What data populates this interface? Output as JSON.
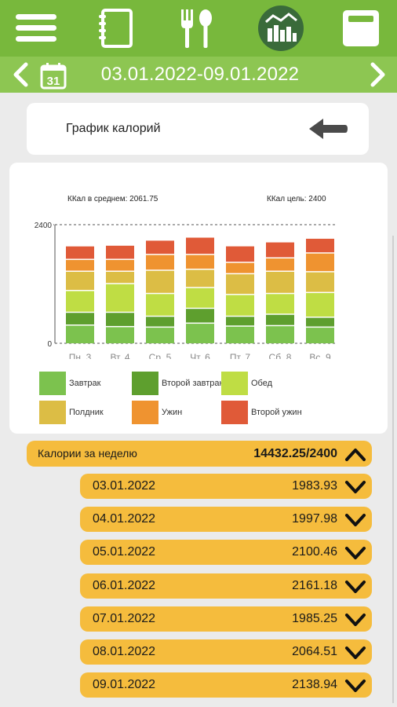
{
  "app": {
    "tabs": [
      {
        "name": "menu",
        "icon": "hamburger-menu-icon"
      },
      {
        "name": "diary",
        "icon": "notebook-icon"
      },
      {
        "name": "food",
        "icon": "fork-spoon-icon"
      },
      {
        "name": "statistics",
        "icon": "bar-chart-icon",
        "active": true
      },
      {
        "name": "scale",
        "icon": "bathroom-scale-icon"
      }
    ],
    "colors": {
      "topbar": "#78b83c",
      "datebar": "#8dc652",
      "row": "#f5bc3d"
    }
  },
  "datebar": {
    "range": "03.01.2022-09.01.2022",
    "calendar_day": "31",
    "prev_icon": "chevron-left-icon",
    "next_icon": "chevron-right-icon"
  },
  "header": {
    "title": "График калорий",
    "back_icon": "arrow-left-icon"
  },
  "chart_data": {
    "type": "bar",
    "stacked": true,
    "avg_label": "ККал в среднем: 2061.75",
    "goal_label": "ККал цель: 2400",
    "ylim": [
      0,
      2400
    ],
    "yticks": [
      "2400",
      "0"
    ],
    "grid": "dashed lines at 0 and 2400",
    "categories": [
      "Пн. 3",
      "Вт. 4",
      "Ср. 5",
      "Чт. 6",
      "Пт. 7",
      "Сб. 8",
      "Вс. 9"
    ],
    "series": [
      {
        "name": "Завтрак",
        "color": "#7cc24e",
        "values": [
          380,
          350,
          340,
          420,
          360,
          370,
          340
        ]
      },
      {
        "name": "Второй завтрак",
        "color": "#5e9f2e",
        "values": [
          260,
          290,
          220,
          300,
          200,
          230,
          200
        ]
      },
      {
        "name": "Обед",
        "color": "#bfdd44",
        "values": [
          440,
          580,
          460,
          420,
          440,
          420,
          500
        ]
      },
      {
        "name": "Полдник",
        "color": "#dcbd45",
        "values": [
          390,
          250,
          470,
          370,
          420,
          450,
          420
        ]
      },
      {
        "name": "Ужин",
        "color": "#ef9330",
        "values": [
          240,
          240,
          320,
          300,
          230,
          270,
          380
        ]
      },
      {
        "name": "Второй ужин",
        "color": "#e05a38",
        "values": [
          274,
          288,
          290,
          351,
          335,
          325,
          299
        ]
      }
    ],
    "legend_position": "bottom"
  },
  "summary": {
    "week_label": "Калории за неделю",
    "week_total": "14432.25/2400",
    "collapse_icon": "chevron-up-icon",
    "days": [
      {
        "date": "03.01.2022",
        "value": "1983.93"
      },
      {
        "date": "04.01.2022",
        "value": "1997.98"
      },
      {
        "date": "05.01.2022",
        "value": "2100.46"
      },
      {
        "date": "06.01.2022",
        "value": "2161.18"
      },
      {
        "date": "07.01.2022",
        "value": "1985.25"
      },
      {
        "date": "08.01.2022",
        "value": "2064.51"
      },
      {
        "date": "09.01.2022",
        "value": "2138.94"
      }
    ],
    "expand_icon": "chevron-down-icon"
  }
}
